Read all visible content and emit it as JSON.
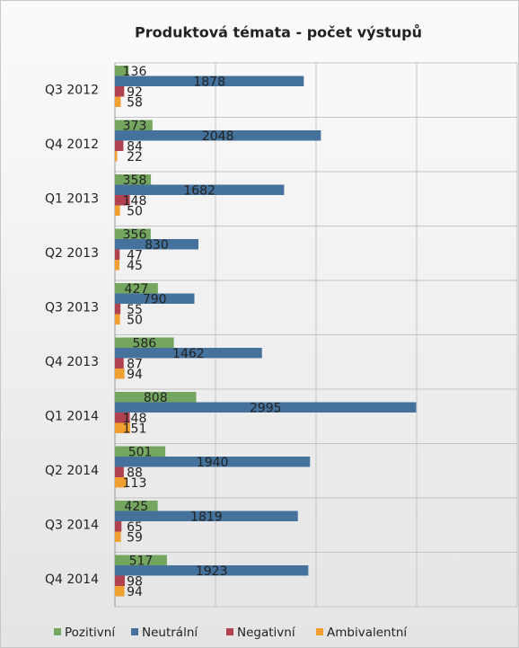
{
  "chart_data": {
    "type": "bar",
    "orientation": "horizontal",
    "title": "Produktová témata - počet výstupů",
    "categories": [
      "Q3 2012",
      "Q4 2012",
      "Q1 2013",
      "Q2 2013",
      "Q3 2013",
      "Q4 2013",
      "Q1 2014",
      "Q2 2014",
      "Q3 2014",
      "Q4 2014"
    ],
    "series": [
      {
        "name": "Pozitivní",
        "color": "#74a660",
        "values": [
          136,
          373,
          358,
          356,
          427,
          586,
          808,
          501,
          425,
          517
        ]
      },
      {
        "name": "Neutrální",
        "color": "#44729c",
        "values": [
          1878,
          2048,
          1682,
          830,
          790,
          1462,
          2995,
          1940,
          1819,
          1923
        ]
      },
      {
        "name": "Negativní",
        "color": "#b0414f",
        "values": [
          92,
          84,
          148,
          47,
          55,
          87,
          148,
          88,
          65,
          98
        ]
      },
      {
        "name": "Ambivalentní",
        "color": "#f0a030",
        "values": [
          58,
          22,
          50,
          45,
          50,
          94,
          151,
          113,
          59,
          94
        ]
      }
    ],
    "xlim": [
      0,
      4000
    ],
    "xticks": [
      0,
      1000,
      2000,
      3000,
      4000
    ],
    "grid": true,
    "legend": "bottom"
  }
}
